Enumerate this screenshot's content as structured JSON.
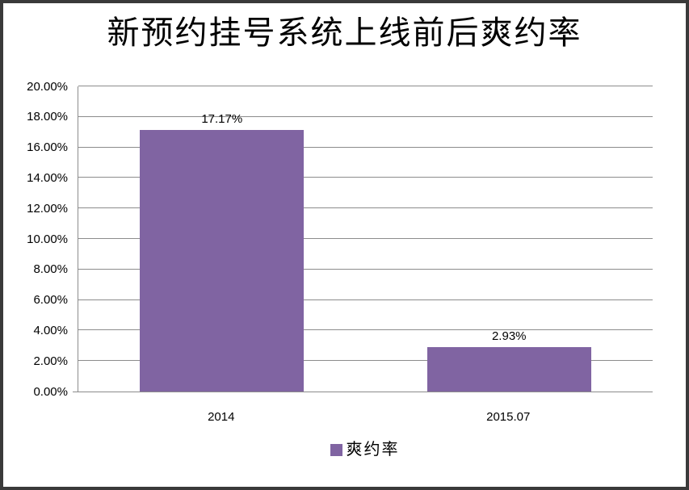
{
  "chart_data": {
    "type": "bar",
    "title": "新预约挂号系统上线前后爽约率",
    "categories": [
      "2014",
      "2015.07"
    ],
    "series": [
      {
        "name": "爽约率",
        "values": [
          17.17,
          2.93
        ],
        "data_labels": [
          "17.17%",
          "2.93%"
        ]
      }
    ],
    "xlabel": "",
    "ylabel": "",
    "ylim": [
      0,
      20
    ],
    "y_step": 2,
    "y_tick_labels": [
      "0.00%",
      "2.00%",
      "4.00%",
      "6.00%",
      "8.00%",
      "10.00%",
      "12.00%",
      "14.00%",
      "16.00%",
      "18.00%",
      "20.00%"
    ],
    "grid": "horizontal",
    "legend_position": "bottom",
    "colors": {
      "bar": "#8064a2",
      "gridline": "#8c8c8c",
      "axis": "#8c8c8c",
      "text": "#000000",
      "frame_border": "#3a3a3a",
      "background": "#ffffff"
    }
  },
  "legend": {
    "items": [
      {
        "label": "爽约率",
        "color": "#8064a2"
      }
    ]
  }
}
